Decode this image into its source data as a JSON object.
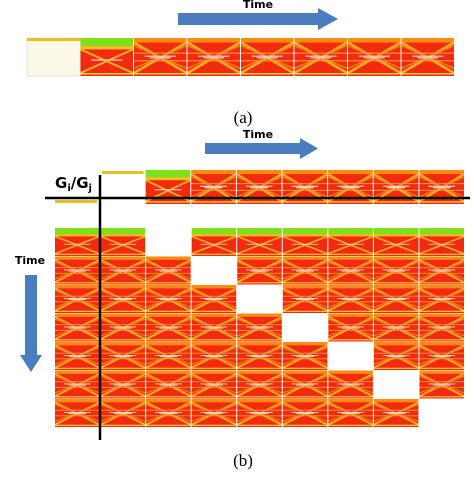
{
  "figure": {
    "panel_a": {
      "arrow_label": "Time",
      "label": "(a)"
    },
    "panel_b": {
      "arrow_label_top": "Time",
      "arrow_label_left": "Time",
      "axis_label": {
        "g1": "G",
        "i": "i",
        "slash": "/",
        "g2": "G",
        "j": "j"
      },
      "label": "(b)"
    }
  }
}
